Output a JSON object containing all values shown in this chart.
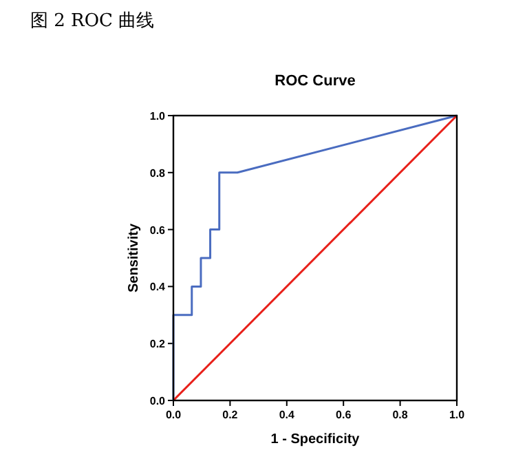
{
  "chart_data": {
    "type": "line",
    "title": "ROC Curve",
    "xlabel": "1 - Specificity",
    "ylabel": "Sensitivity",
    "annotations": [
      "图 2 ROC 曲线"
    ],
    "xlim": [
      0,
      1
    ],
    "ylim": [
      0,
      1
    ],
    "xticks": [
      {
        "value": 0,
        "label": "0.0"
      },
      0.2,
      0.4,
      0.6,
      0.8,
      {
        "value": 1,
        "label": "1.0"
      }
    ],
    "yticks": [
      {
        "value": 0,
        "label": "0.0"
      },
      0.2,
      0.4,
      0.6,
      0.8,
      {
        "value": 1,
        "label": "1.0"
      }
    ],
    "grid": false,
    "marker": "none",
    "line_style": "solid",
    "series": [
      {
        "color": "#4a6cc0",
        "x": [
          0,
          0,
          0.065,
          0.065,
          0.097,
          0.097,
          0.13,
          0.13,
          0.162,
          0.162,
          0.226,
          1
        ],
        "values": [
          0,
          0.3,
          0.3,
          0.4,
          0.4,
          0.5,
          0.5,
          0.6,
          0.6,
          0.8,
          0.8,
          1
        ]
      },
      {
        "color": "#e8201a",
        "x": [
          0,
          1
        ],
        "values": [
          0,
          1
        ]
      }
    ]
  }
}
